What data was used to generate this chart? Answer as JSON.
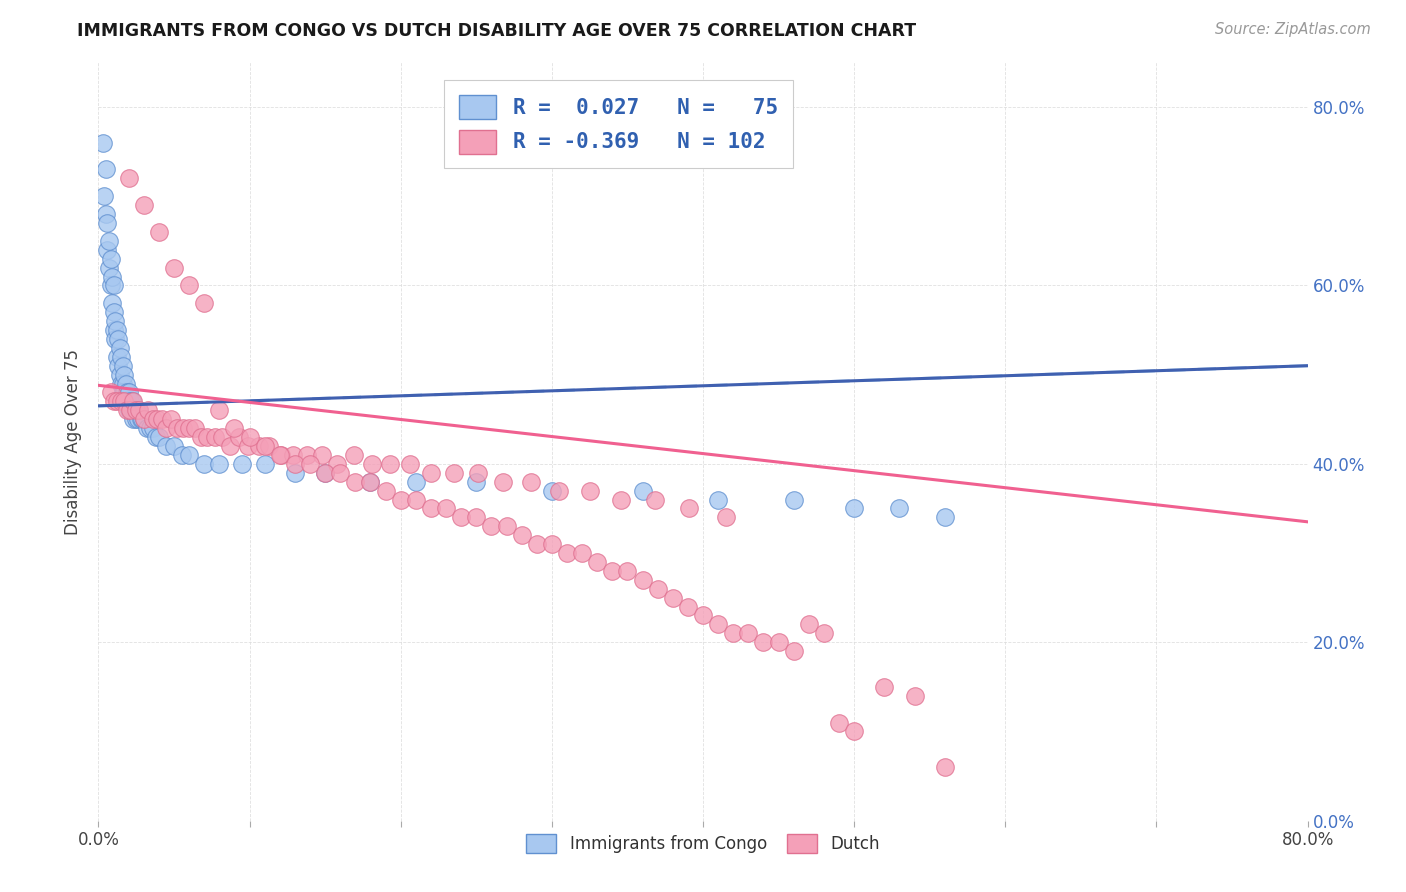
{
  "title": "IMMIGRANTS FROM CONGO VS DUTCH DISABILITY AGE OVER 75 CORRELATION CHART",
  "source": "Source: ZipAtlas.com",
  "ylabel": "Disability Age Over 75",
  "xlim": [
    0.0,
    0.8
  ],
  "ylim": [
    0.0,
    0.85
  ],
  "legend_blue_r": "0.027",
  "legend_blue_n": "75",
  "legend_pink_r": "-0.369",
  "legend_pink_n": "102",
  "color_blue_fill": "#A8C8F0",
  "color_pink_fill": "#F4A0B8",
  "color_blue_edge": "#6090D0",
  "color_pink_edge": "#E07090",
  "color_blue_line": "#4060B0",
  "color_blue_dash": "#90C0E8",
  "color_pink_line": "#F06090",
  "color_grid": "#DDDDDD",
  "color_right_tick": "#4472C4",
  "blue_x": [
    0.003,
    0.004,
    0.005,
    0.005,
    0.006,
    0.006,
    0.007,
    0.007,
    0.008,
    0.008,
    0.009,
    0.009,
    0.01,
    0.01,
    0.01,
    0.011,
    0.011,
    0.012,
    0.012,
    0.013,
    0.013,
    0.014,
    0.014,
    0.015,
    0.015,
    0.016,
    0.016,
    0.016,
    0.017,
    0.017,
    0.018,
    0.018,
    0.019,
    0.019,
    0.02,
    0.02,
    0.021,
    0.021,
    0.022,
    0.022,
    0.023,
    0.023,
    0.024,
    0.025,
    0.025,
    0.026,
    0.027,
    0.028,
    0.029,
    0.03,
    0.032,
    0.034,
    0.036,
    0.038,
    0.04,
    0.045,
    0.05,
    0.055,
    0.06,
    0.07,
    0.08,
    0.095,
    0.11,
    0.13,
    0.15,
    0.18,
    0.21,
    0.25,
    0.3,
    0.36,
    0.41,
    0.46,
    0.5,
    0.53,
    0.56
  ],
  "blue_y": [
    0.76,
    0.7,
    0.73,
    0.68,
    0.67,
    0.64,
    0.65,
    0.62,
    0.63,
    0.6,
    0.61,
    0.58,
    0.6,
    0.57,
    0.55,
    0.56,
    0.54,
    0.55,
    0.52,
    0.54,
    0.51,
    0.53,
    0.5,
    0.52,
    0.49,
    0.51,
    0.49,
    0.48,
    0.5,
    0.48,
    0.49,
    0.47,
    0.48,
    0.47,
    0.48,
    0.46,
    0.47,
    0.46,
    0.47,
    0.46,
    0.46,
    0.45,
    0.46,
    0.45,
    0.46,
    0.45,
    0.46,
    0.45,
    0.45,
    0.45,
    0.44,
    0.44,
    0.44,
    0.43,
    0.43,
    0.42,
    0.42,
    0.41,
    0.41,
    0.4,
    0.4,
    0.4,
    0.4,
    0.39,
    0.39,
    0.38,
    0.38,
    0.38,
    0.37,
    0.37,
    0.36,
    0.36,
    0.35,
    0.35,
    0.34
  ],
  "pink_x": [
    0.008,
    0.01,
    0.012,
    0.015,
    0.017,
    0.019,
    0.021,
    0.023,
    0.025,
    0.027,
    0.03,
    0.033,
    0.036,
    0.039,
    0.042,
    0.045,
    0.048,
    0.052,
    0.056,
    0.06,
    0.064,
    0.068,
    0.072,
    0.077,
    0.082,
    0.087,
    0.093,
    0.099,
    0.106,
    0.113,
    0.121,
    0.129,
    0.138,
    0.148,
    0.158,
    0.169,
    0.181,
    0.193,
    0.206,
    0.22,
    0.235,
    0.251,
    0.268,
    0.286,
    0.305,
    0.325,
    0.346,
    0.368,
    0.391,
    0.415,
    0.02,
    0.03,
    0.04,
    0.05,
    0.06,
    0.07,
    0.08,
    0.09,
    0.1,
    0.11,
    0.12,
    0.13,
    0.14,
    0.15,
    0.16,
    0.17,
    0.18,
    0.19,
    0.2,
    0.21,
    0.22,
    0.23,
    0.24,
    0.25,
    0.26,
    0.27,
    0.28,
    0.29,
    0.3,
    0.31,
    0.32,
    0.33,
    0.34,
    0.35,
    0.36,
    0.37,
    0.38,
    0.39,
    0.4,
    0.41,
    0.42,
    0.43,
    0.44,
    0.45,
    0.46,
    0.47,
    0.48,
    0.49,
    0.5,
    0.52,
    0.54,
    0.56
  ],
  "pink_y": [
    0.48,
    0.47,
    0.47,
    0.47,
    0.47,
    0.46,
    0.46,
    0.47,
    0.46,
    0.46,
    0.45,
    0.46,
    0.45,
    0.45,
    0.45,
    0.44,
    0.45,
    0.44,
    0.44,
    0.44,
    0.44,
    0.43,
    0.43,
    0.43,
    0.43,
    0.42,
    0.43,
    0.42,
    0.42,
    0.42,
    0.41,
    0.41,
    0.41,
    0.41,
    0.4,
    0.41,
    0.4,
    0.4,
    0.4,
    0.39,
    0.39,
    0.39,
    0.38,
    0.38,
    0.37,
    0.37,
    0.36,
    0.36,
    0.35,
    0.34,
    0.72,
    0.69,
    0.66,
    0.62,
    0.6,
    0.58,
    0.46,
    0.44,
    0.43,
    0.42,
    0.41,
    0.4,
    0.4,
    0.39,
    0.39,
    0.38,
    0.38,
    0.37,
    0.36,
    0.36,
    0.35,
    0.35,
    0.34,
    0.34,
    0.33,
    0.33,
    0.32,
    0.31,
    0.31,
    0.3,
    0.3,
    0.29,
    0.28,
    0.28,
    0.27,
    0.26,
    0.25,
    0.24,
    0.23,
    0.22,
    0.21,
    0.21,
    0.2,
    0.2,
    0.19,
    0.22,
    0.21,
    0.11,
    0.1,
    0.15,
    0.14,
    0.06
  ],
  "blue_trend_start_y": 0.465,
  "blue_trend_end_y": 0.51,
  "blue_trend_x": [
    0.0,
    0.8
  ],
  "pink_trend_start_y": 0.488,
  "pink_trend_end_y": 0.335,
  "pink_trend_x": [
    0.0,
    0.8
  ]
}
